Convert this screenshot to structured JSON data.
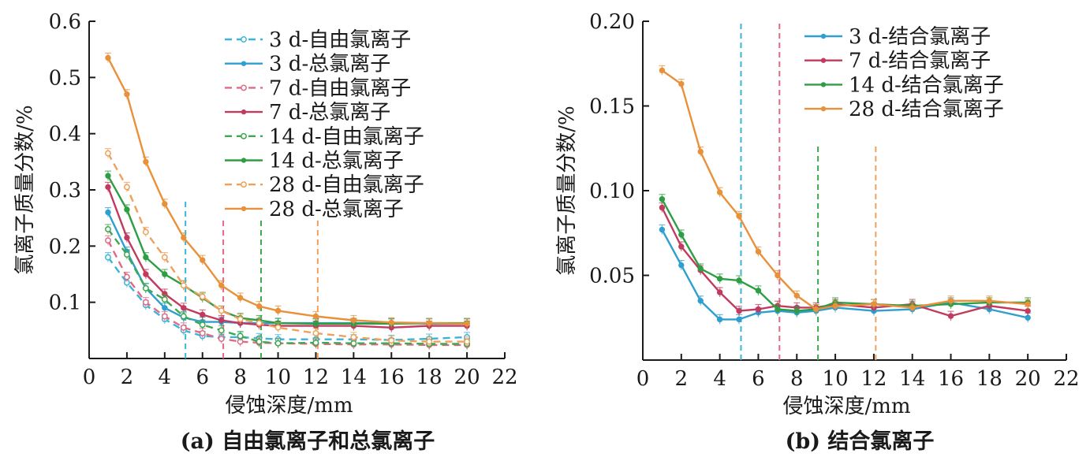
{
  "chart_data": [
    {
      "type": "line",
      "caption": "(a) 自由氯离子和总氯离子",
      "xlabel": "侵蚀深度/mm",
      "ylabel": "氯离子质量分数/%",
      "xlim": [
        0,
        22
      ],
      "ylim": [
        0,
        0.6
      ],
      "xticks": [
        0,
        2,
        4,
        6,
        8,
        10,
        12,
        14,
        16,
        18,
        20,
        22
      ],
      "yticks": [
        0.1,
        0.2,
        0.3,
        0.4,
        0.5,
        0.6
      ],
      "ytick_labels": [
        "0.1",
        "0.2",
        "0.3",
        "0.4",
        "0.5",
        "0.6"
      ],
      "legend_position": "top-right",
      "x": [
        1,
        2,
        3,
        4,
        5,
        6,
        7,
        8,
        9,
        10,
        12,
        14,
        16,
        18,
        20
      ],
      "series": [
        {
          "name": "3 d-自由氯离子",
          "color": "#3AB5D8",
          "dashed": true,
          "marker": "open",
          "values": [
            0.18,
            0.135,
            0.095,
            0.07,
            0.05,
            0.04,
            0.038,
            0.038,
            0.036,
            0.034,
            0.034,
            0.034,
            0.033,
            0.035,
            0.038
          ]
        },
        {
          "name": "3 d-总氯离子",
          "color": "#2E9FD0",
          "dashed": false,
          "marker": "filled",
          "values": [
            0.26,
            0.19,
            0.125,
            0.09,
            0.073,
            0.065,
            0.065,
            0.063,
            0.063,
            0.063,
            0.063,
            0.063,
            0.063,
            0.062,
            0.062
          ]
        },
        {
          "name": "7 d-自由氯离子",
          "color": "#E06A86",
          "dashed": true,
          "marker": "open",
          "values": [
            0.21,
            0.145,
            0.1,
            0.075,
            0.055,
            0.045,
            0.035,
            0.03,
            0.028,
            0.027,
            0.026,
            0.025,
            0.025,
            0.024,
            0.024
          ]
        },
        {
          "name": "7 d-总氯离子",
          "color": "#C23A5E",
          "dashed": false,
          "marker": "filled",
          "values": [
            0.305,
            0.215,
            0.15,
            0.115,
            0.09,
            0.078,
            0.068,
            0.063,
            0.06,
            0.058,
            0.058,
            0.058,
            0.055,
            0.058,
            0.058
          ]
        },
        {
          "name": "14 d-自由氯离子",
          "color": "#3FA84E",
          "dashed": true,
          "marker": "open",
          "values": [
            0.23,
            0.185,
            0.125,
            0.105,
            0.075,
            0.06,
            0.05,
            0.04,
            0.03,
            0.027,
            0.028,
            0.027,
            0.027,
            0.026,
            0.026
          ]
        },
        {
          "name": "14 d-总氯离子",
          "color": "#2E9E44",
          "dashed": false,
          "marker": "filled",
          "values": [
            0.325,
            0.265,
            0.18,
            0.15,
            0.13,
            0.108,
            0.085,
            0.072,
            0.068,
            0.063,
            0.062,
            0.062,
            0.062,
            0.063,
            0.063
          ]
        },
        {
          "name": "28 d-自由氯离子",
          "color": "#F0A05A",
          "dashed": true,
          "marker": "open",
          "values": [
            0.365,
            0.305,
            0.225,
            0.18,
            0.13,
            0.11,
            0.085,
            0.07,
            0.063,
            0.055,
            0.045,
            0.038,
            0.032,
            0.03,
            0.03
          ]
        },
        {
          "name": "28 d-总氯离子",
          "color": "#E8913A",
          "dashed": false,
          "marker": "filled",
          "values": [
            0.535,
            0.47,
            0.35,
            0.275,
            0.215,
            0.175,
            0.13,
            0.108,
            0.093,
            0.085,
            0.075,
            0.068,
            0.064,
            0.063,
            0.062
          ]
        }
      ],
      "vlines": [
        {
          "x": 5.1,
          "color": "#3AB5D8",
          "y_max": 0.28
        },
        {
          "x": 7.1,
          "color": "#E06A86",
          "y_max": 0.25
        },
        {
          "x": 9.1,
          "color": "#3FA84E",
          "y_max": 0.25
        },
        {
          "x": 12.1,
          "color": "#F0A05A",
          "y_max": 0.25
        }
      ]
    },
    {
      "type": "line",
      "caption": "(b) 结合氯离子",
      "xlabel": "侵蚀深度/mm",
      "ylabel": "氯离子质量分数/%",
      "xlim": [
        0,
        22
      ],
      "ylim": [
        0,
        0.2
      ],
      "xticks": [
        0,
        2,
        4,
        6,
        8,
        10,
        12,
        14,
        16,
        18,
        20,
        22
      ],
      "yticks": [
        0.05,
        0.1,
        0.15,
        0.2
      ],
      "ytick_labels": [
        "0.05",
        "0.10",
        "0.15",
        "0.20"
      ],
      "legend_position": "top-right",
      "x": [
        1,
        2,
        3,
        4,
        5,
        6,
        7,
        8,
        9,
        10,
        12,
        14,
        16,
        18,
        20
      ],
      "series": [
        {
          "name": "3 d-结合氯离子",
          "color": "#2E9FD0",
          "dashed": false,
          "marker": "filled",
          "values": [
            0.077,
            0.056,
            0.035,
            0.024,
            0.024,
            0.028,
            0.029,
            0.028,
            0.029,
            0.031,
            0.029,
            0.03,
            0.034,
            0.03,
            0.025
          ]
        },
        {
          "name": "7 d-结合氯离子",
          "color": "#C23A5E",
          "dashed": false,
          "marker": "filled",
          "values": [
            0.09,
            0.067,
            0.053,
            0.04,
            0.029,
            0.03,
            0.032,
            0.031,
            0.031,
            0.033,
            0.031,
            0.033,
            0.026,
            0.032,
            0.029
          ]
        },
        {
          "name": "14 d-结合氯离子",
          "color": "#2E9E44",
          "dashed": false,
          "marker": "filled",
          "values": [
            0.095,
            0.074,
            0.054,
            0.048,
            0.047,
            0.041,
            0.03,
            0.029,
            0.03,
            0.034,
            0.033,
            0.032,
            0.033,
            0.034,
            0.034
          ]
        },
        {
          "name": "28 d-结合氯离子",
          "color": "#E8913A",
          "dashed": false,
          "marker": "filled",
          "values": [
            0.171,
            0.163,
            0.123,
            0.099,
            0.085,
            0.064,
            0.05,
            0.038,
            0.03,
            0.032,
            0.033,
            0.031,
            0.035,
            0.035,
            0.033
          ]
        }
      ],
      "vlines": [
        {
          "x": 5.1,
          "color": "#3AB5D8",
          "y_max": 0.2
        },
        {
          "x": 7.1,
          "color": "#E06A86",
          "y_max": 0.2
        },
        {
          "x": 9.1,
          "color": "#3FA84E",
          "y_max": 0.127
        },
        {
          "x": 12.1,
          "color": "#F0A05A",
          "y_max": 0.127
        }
      ]
    }
  ]
}
